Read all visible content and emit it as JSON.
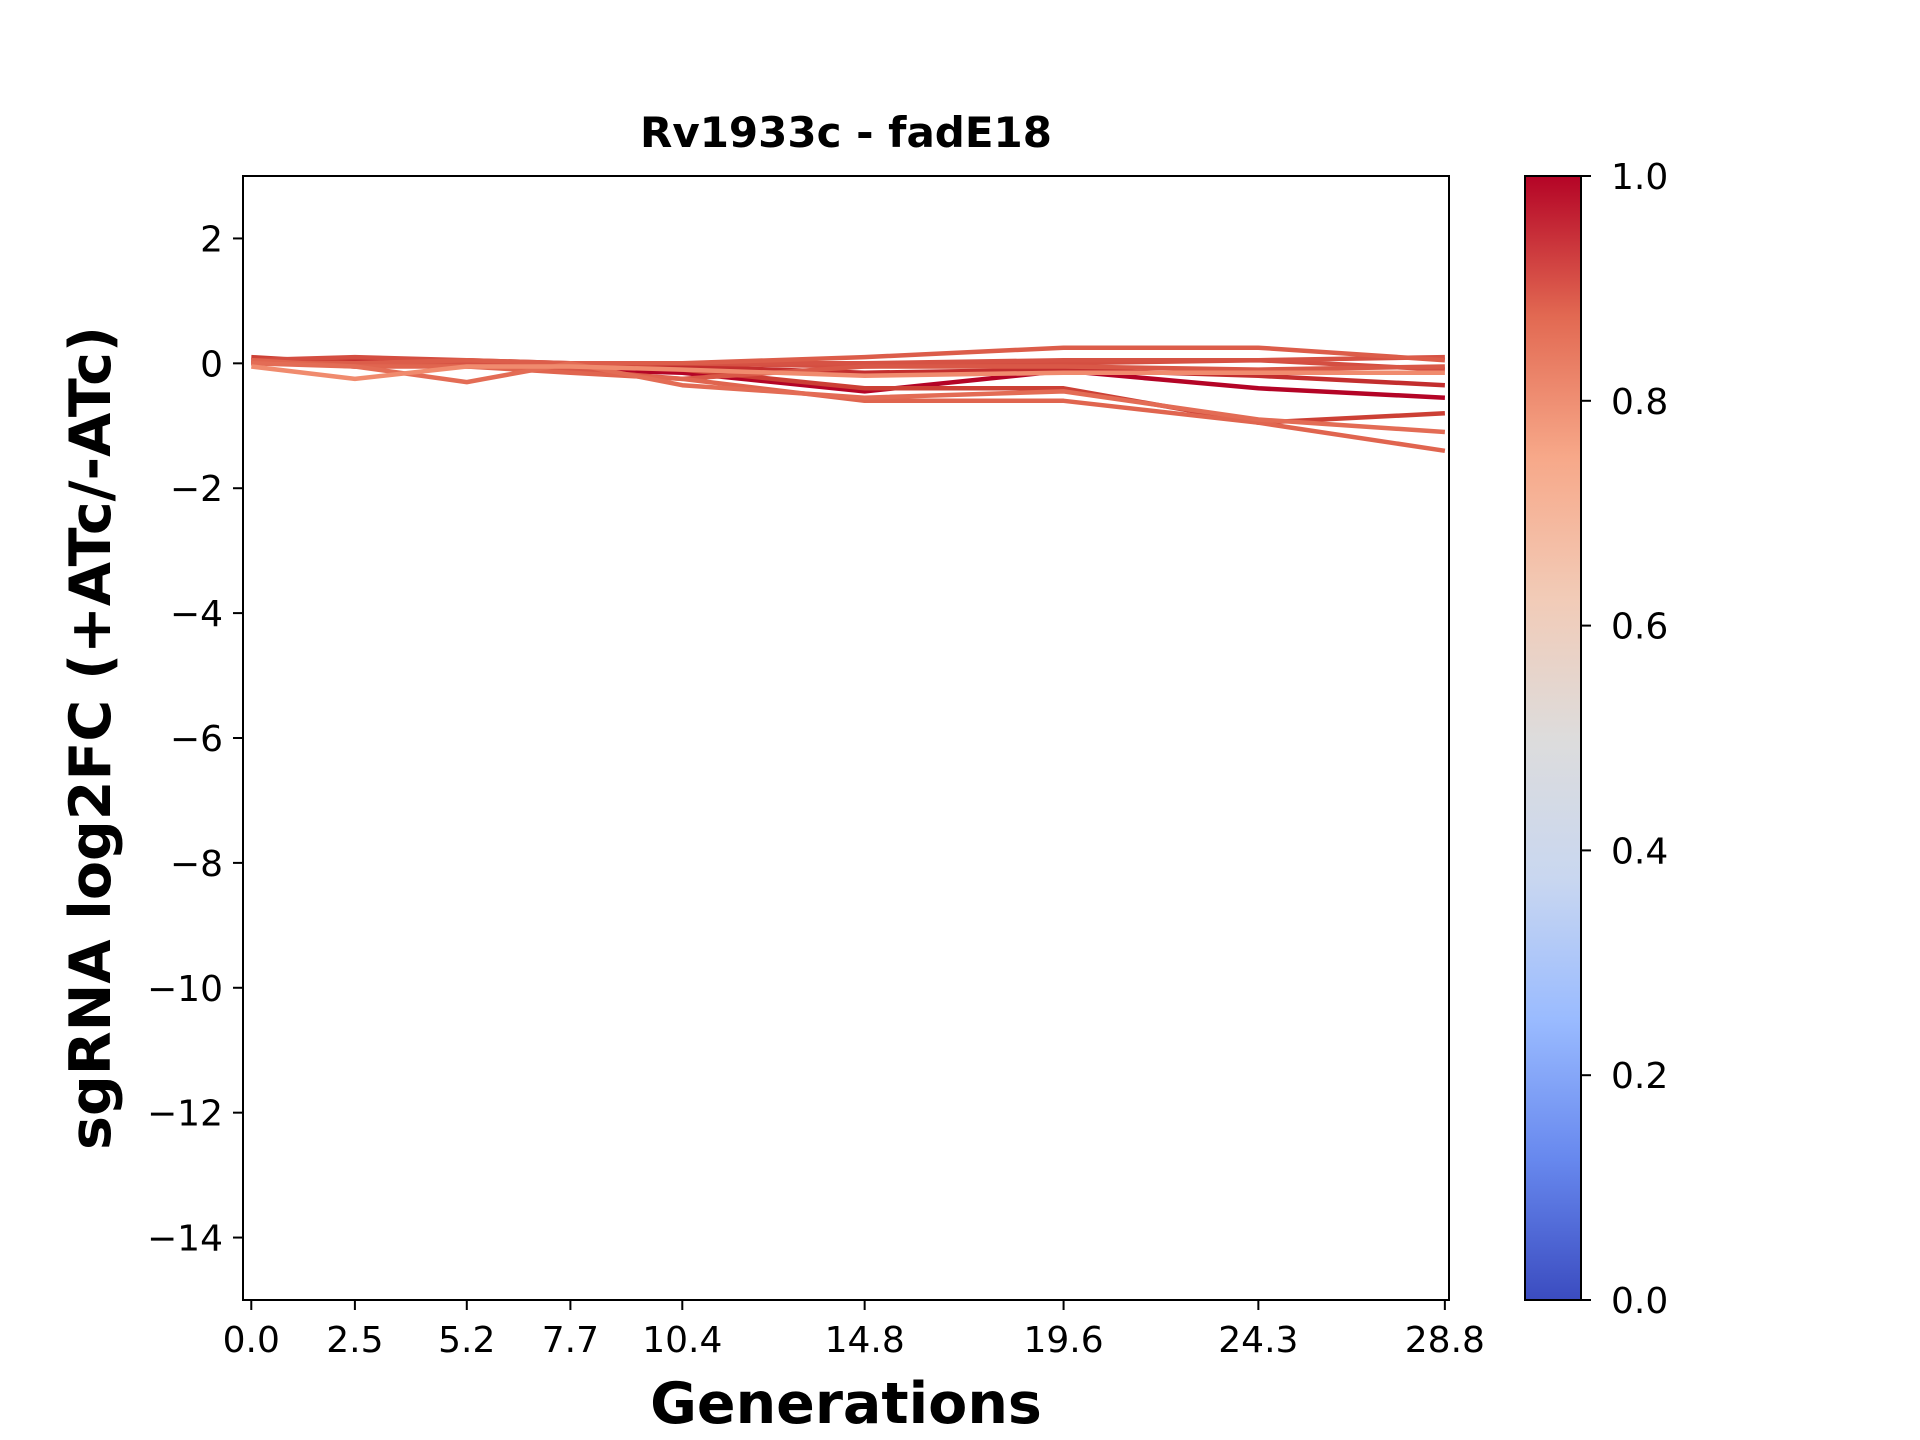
{
  "chart_data": {
    "type": "line",
    "title": "Rv1933c - fadE18",
    "xlabel": "Generations",
    "ylabel": "sgRNA log2FC (+ATc/-ATc)",
    "x": [
      0.0,
      2.5,
      5.2,
      7.7,
      10.4,
      14.8,
      19.6,
      24.3,
      28.8
    ],
    "x_tick_labels": [
      "0.0",
      "2.5",
      "5.2",
      "7.7",
      "10.4",
      "14.8",
      "19.6",
      "24.3",
      "28.8"
    ],
    "xlim": [
      -0.2,
      28.9
    ],
    "ylim": [
      -15,
      3
    ],
    "y_ticks": [
      2,
      0,
      -2,
      -4,
      -6,
      -8,
      -10,
      -12,
      -14
    ],
    "y_tick_labels": [
      "2",
      "0",
      "−2",
      "−4",
      "−6",
      "−8",
      "−10",
      "−12",
      "−14"
    ],
    "grid": false,
    "colormap": "coolwarm",
    "colorbar": {
      "range": [
        0,
        1
      ],
      "ticks": [
        0.0,
        0.2,
        0.4,
        0.6,
        0.8,
        1.0
      ],
      "tick_labels": [
        "0.0",
        "0.2",
        "0.4",
        "0.6",
        "0.8",
        "1.0"
      ],
      "stops": [
        "#3b4cc0",
        "#6788ee",
        "#9abbff",
        "#c9d7f0",
        "#dddcdc",
        "#f2cbb7",
        "#f7a889",
        "#e26952",
        "#b40426"
      ]
    },
    "series": [
      {
        "color": "#b40426",
        "values": [
          0.05,
          -0.05,
          0.0,
          -0.1,
          -0.15,
          -0.45,
          -0.12,
          -0.4,
          -0.55
        ]
      },
      {
        "color": "#c32e2e",
        "values": [
          0.0,
          0.05,
          0.05,
          -0.05,
          -0.05,
          -0.15,
          -0.1,
          -0.2,
          -0.35
        ]
      },
      {
        "color": "#cc4035",
        "values": [
          0.1,
          0.0,
          0.0,
          0.0,
          -0.1,
          -0.4,
          -0.4,
          -0.95,
          -0.8
        ]
      },
      {
        "color": "#d44e41",
        "values": [
          0.05,
          0.1,
          0.05,
          0.0,
          0.0,
          -0.05,
          0.0,
          0.05,
          -0.1
        ]
      },
      {
        "color": "#d65244",
        "values": [
          0.0,
          0.0,
          0.0,
          0.0,
          0.0,
          0.0,
          0.05,
          0.05,
          0.1
        ]
      },
      {
        "color": "#d95847",
        "values": [
          0.0,
          0.0,
          -0.05,
          -0.1,
          -0.25,
          -0.05,
          -0.05,
          -0.1,
          -0.05
        ]
      },
      {
        "color": "#dc5d4a",
        "values": [
          0.0,
          0.0,
          0.05,
          0.0,
          0.0,
          0.1,
          0.25,
          0.25,
          0.05
        ]
      },
      {
        "color": "#e0654f",
        "values": [
          0.05,
          -0.05,
          -0.05,
          -0.15,
          -0.25,
          -0.6,
          -0.6,
          -0.95,
          -1.4
        ]
      },
      {
        "color": "#e36c55",
        "values": [
          0.0,
          -0.05,
          -0.3,
          0.0,
          -0.35,
          -0.55,
          -0.45,
          -0.9,
          -1.1
        ]
      },
      {
        "color": "#f08b6e",
        "values": [
          -0.05,
          -0.25,
          -0.05,
          -0.05,
          -0.1,
          -0.2,
          -0.15,
          -0.15,
          -0.15
        ]
      }
    ]
  }
}
